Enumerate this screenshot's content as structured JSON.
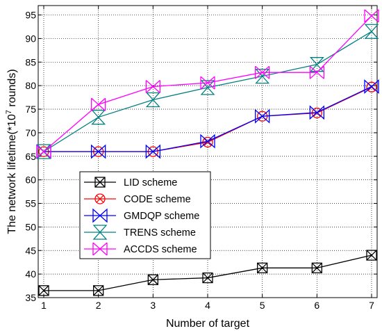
{
  "chart_data": {
    "type": "line",
    "x": [
      1,
      2,
      3,
      4,
      5,
      6,
      7
    ],
    "xlabel": "Number of target",
    "ylabel": "The network lifetime(*10",
    "ylabel_sup": "7",
    "ylabel_suffix": " rounds)",
    "xlim": [
      1,
      7
    ],
    "ylim": [
      35,
      97
    ],
    "yticks": [
      35,
      40,
      45,
      50,
      55,
      60,
      65,
      70,
      75,
      80,
      85,
      90,
      95
    ],
    "xticks": [
      1,
      2,
      3,
      4,
      5,
      6,
      7
    ],
    "grid": true,
    "legend_position": "lower-left",
    "series": [
      {
        "name": "LID scheme",
        "color": "#000000",
        "marker": "square-x",
        "values": [
          36.5,
          36.5,
          38.8,
          39.2,
          41.3,
          41.3,
          44.0
        ]
      },
      {
        "name": "CODE scheme",
        "color": "#ff0000",
        "marker": "circle-x",
        "values": [
          66.0,
          66.0,
          66.0,
          68.0,
          73.5,
          74.2,
          79.7
        ]
      },
      {
        "name": "GMDQP scheme",
        "color": "#0000ff",
        "marker": "bowtie",
        "values": [
          66.0,
          66.0,
          66.0,
          68.2,
          73.5,
          74.3,
          79.8
        ]
      },
      {
        "name": "TRENS scheme",
        "color": "#008080",
        "marker": "hourglass",
        "values": [
          66.0,
          73.3,
          77.0,
          79.6,
          82.0,
          84.5,
          91.5
        ]
      },
      {
        "name": "ACCDS scheme",
        "color": "#ff00ff",
        "marker": "bowtie-bar",
        "values": [
          66.0,
          76.0,
          79.8,
          80.6,
          82.8,
          82.8,
          94.8
        ]
      }
    ]
  }
}
